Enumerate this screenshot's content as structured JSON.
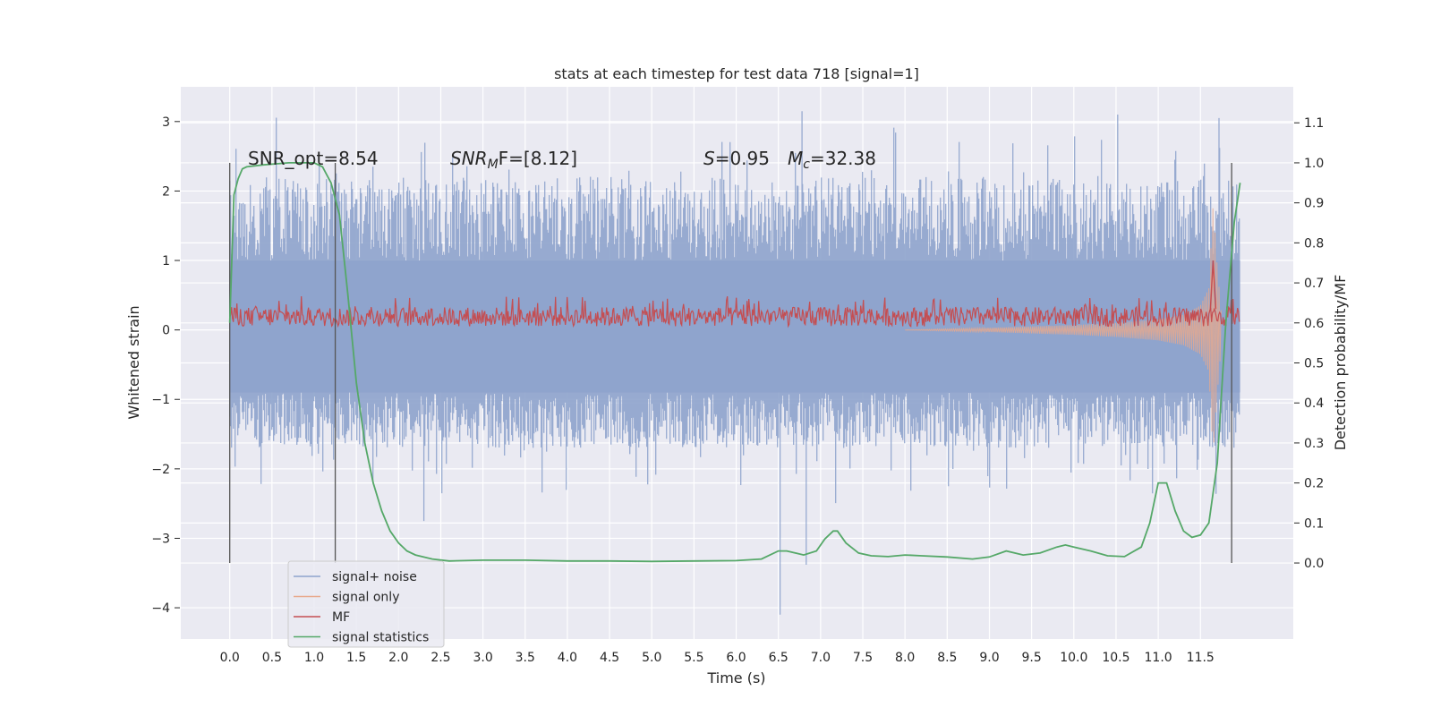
{
  "chart_data": {
    "type": "line",
    "title": "stats at each timestep for test data 718 [signal=1]",
    "xlabel": "Time (s)",
    "ylabel": "Whitened strain",
    "ylabel_right": "Detection probability/MF",
    "xlim": [
      -0.58,
      12.6
    ],
    "ylim": [
      -4.45,
      3.5
    ],
    "ylim_right": [
      -0.19,
      1.19
    ],
    "xticks": [
      "0.0",
      "0.5",
      "1.0",
      "1.5",
      "2.0",
      "2.5",
      "3.0",
      "3.5",
      "4.0",
      "4.5",
      "5.0",
      "5.5",
      "6.0",
      "6.5",
      "7.0",
      "7.5",
      "8.0",
      "8.5",
      "9.0",
      "9.5",
      "10.0",
      "10.5",
      "11.0",
      "11.5"
    ],
    "yticks_left": [
      "3",
      "2",
      "1",
      "0",
      "−1",
      "−2",
      "−3",
      "−4"
    ],
    "yticks_right": [
      "1.1",
      "1.0",
      "0.9",
      "0.8",
      "0.7",
      "0.6",
      "0.5",
      "0.4",
      "0.3",
      "0.2",
      "0.1",
      "0.0"
    ],
    "grid": true,
    "legend_position": "lower-left",
    "annotations": {
      "snr_opt": "SNR_opt=8.54",
      "snr_mf_base": "SNR",
      "snr_mf_sub": "M",
      "snr_mf_rest": "F=[8.12]",
      "s_label": "S",
      "s_value": "=0.95",
      "mc_base": "M",
      "mc_sub": "c",
      "mc_value": "=32.38"
    },
    "vertical_lines_x": [
      0.0,
      1.25,
      11.87
    ],
    "series": [
      {
        "name": "signal+ noise",
        "color": "#8ea3cc",
        "axis": "left",
        "envelope_x": [
          0.0,
          11.97
        ],
        "typical_range": [
          -1.7,
          2.2
        ],
        "extremes": [
          [
            6.52,
            -4.1
          ],
          [
            6.78,
            3.15
          ],
          [
            6.83,
            -3.38
          ],
          [
            10.52,
            3.1
          ],
          [
            11.72,
            3.05
          ],
          [
            2.3,
            -2.75
          ]
        ]
      },
      {
        "name": "signal only",
        "color": "#e8a98d",
        "axis": "left",
        "x": [
          8.0,
          9.0,
          10.0,
          10.5,
          11.0,
          11.3,
          11.5,
          11.6,
          11.65,
          11.7,
          11.75
        ],
        "amplitude": [
          0.0,
          0.03,
          0.07,
          0.1,
          0.15,
          0.22,
          0.35,
          0.6,
          1.8,
          0.9,
          0.2
        ]
      },
      {
        "name": "MF",
        "color": "#c44e52",
        "axis": "left",
        "range": [
          0.05,
          0.45
        ],
        "peak": [
          11.65,
          1.0
        ]
      },
      {
        "name": "signal statistics",
        "color": "#55a868",
        "axis": "right",
        "x": [
          0.0,
          0.05,
          0.1,
          0.15,
          0.2,
          0.4,
          0.7,
          1.0,
          1.1,
          1.2,
          1.3,
          1.4,
          1.5,
          1.6,
          1.7,
          1.8,
          1.9,
          2.0,
          2.1,
          2.2,
          2.4,
          2.6,
          3.0,
          3.5,
          4.0,
          4.5,
          5.0,
          5.5,
          6.0,
          6.3,
          6.5,
          6.6,
          6.8,
          6.95,
          7.05,
          7.15,
          7.2,
          7.3,
          7.45,
          7.6,
          7.8,
          8.0,
          8.2,
          8.5,
          8.8,
          9.0,
          9.2,
          9.4,
          9.6,
          9.8,
          9.9,
          10.0,
          10.2,
          10.4,
          10.6,
          10.8,
          10.9,
          11.0,
          11.1,
          11.2,
          11.3,
          11.4,
          11.5,
          11.6,
          11.7,
          11.8,
          11.9,
          11.97
        ],
        "y": [
          0.6,
          0.92,
          0.96,
          0.985,
          0.99,
          0.995,
          1.0,
          1.0,
          0.99,
          0.95,
          0.87,
          0.67,
          0.45,
          0.3,
          0.2,
          0.13,
          0.08,
          0.05,
          0.03,
          0.02,
          0.01,
          0.005,
          0.007,
          0.007,
          0.005,
          0.005,
          0.004,
          0.005,
          0.006,
          0.01,
          0.03,
          0.03,
          0.02,
          0.03,
          0.06,
          0.08,
          0.08,
          0.05,
          0.025,
          0.018,
          0.016,
          0.02,
          0.018,
          0.015,
          0.01,
          0.015,
          0.03,
          0.02,
          0.025,
          0.04,
          0.045,
          0.04,
          0.03,
          0.018,
          0.016,
          0.04,
          0.1,
          0.2,
          0.2,
          0.13,
          0.08,
          0.064,
          0.07,
          0.1,
          0.25,
          0.6,
          0.85,
          0.95
        ]
      }
    ]
  }
}
